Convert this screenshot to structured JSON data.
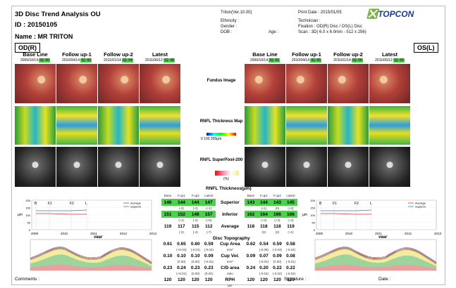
{
  "header": {
    "title": "3D Disc Trend Analysis OU",
    "id": "ID : 20150105",
    "name": "Name : MR   TRITON",
    "version": "Triton(Ver.10.00)",
    "ethnicity": "Ethnicity :",
    "gender": "Gender :",
    "dob": "DOB :",
    "age": "Age :",
    "print_date": "Print Date : 2015/01/05",
    "technician": "Technician :",
    "fixation": "Fixation : OD(R) Disc / OS(L) Disc",
    "scan": "Scan : 3D( 6.0 x 6.0mm - 512 x 256)",
    "logo": "TOPCON"
  },
  "od": {
    "label": "OD(R)",
    "cols": [
      {
        "h": "Base Line",
        "d": "2009/10/14",
        "iq": "IQ: 60"
      },
      {
        "h": "Follow up-1",
        "d": "2010/04/14",
        "iq": "IQ: 60"
      },
      {
        "h": "Follow up-2",
        "d": "2011/01/14",
        "iq": "IQ: 54"
      },
      {
        "h": "Latest",
        "d": "2011/06/12",
        "iq": "IQ: 38"
      }
    ]
  },
  "os": {
    "label": "OS(L)",
    "cols": [
      {
        "h": "Base Line",
        "d": "2009/10/14",
        "iq": "IQ: 65"
      },
      {
        "h": "Follow up-1",
        "d": "2010/04/14",
        "iq": "IQ: 65"
      },
      {
        "h": "Follow up-2",
        "d": "2011/01/14",
        "iq": "IQ: 56"
      },
      {
        "h": "Latest",
        "d": "2011/06/12",
        "iq": "IQ: 55"
      }
    ]
  },
  "center": {
    "fundus": "Fundus Image",
    "rnfl": "RNFL Thickness Map",
    "scale": "0   100   200µm",
    "sp": "RNFL SuperPixel-200",
    "sp_unit": "(%)",
    "thick_title": "RNFL Thickness(µm)",
    "disc_title": "Disc Topography"
  },
  "table": {
    "head": [
      "Base",
      "F.up1",
      "F.up2",
      "Latest",
      "",
      "Base",
      "F.up1",
      "F.up2",
      "Latest"
    ],
    "rows": [
      {
        "label": "Superior",
        "od": [
          "146",
          "144",
          "144",
          "147"
        ],
        "od_d": [
          "",
          "(-2)",
          "(-2)",
          "(+1)"
        ],
        "os": [
          "143",
          "144",
          "143",
          "145"
        ],
        "os_d": [
          "",
          "(+1)",
          "(0)",
          "(+2)"
        ],
        "green": true
      },
      {
        "label": "Inferior",
        "od": [
          "151",
          "152",
          "148",
          "157"
        ],
        "od_d": [
          "",
          "(+1)",
          "(-3)",
          "(+6)"
        ],
        "os": [
          "162",
          "164",
          "166",
          "166"
        ],
        "os_d": [
          "",
          "(+2)",
          "(+4)",
          "(+4)"
        ],
        "green": true
      },
      {
        "label": "Average",
        "od": [
          "119",
          "117",
          "115",
          "112"
        ],
        "od_d": [
          "",
          "(-2)",
          "(-4)",
          "(-7)"
        ],
        "os": [
          "118",
          "118",
          "118",
          "119"
        ],
        "os_d": [
          "",
          "(0)",
          "(0)",
          "(+1)"
        ],
        "green": false
      },
      {
        "label": "Cup Area",
        "unit": "mm²",
        "od": [
          "0.61",
          "0.65",
          "0.60",
          "0.59"
        ],
        "od_d": [
          "",
          "(+0.04)",
          "(-0.01)",
          "(-0.02)"
        ],
        "os": [
          "0.62",
          "0.54",
          "0.59",
          "0.58"
        ],
        "os_d": [
          "",
          "(-0.08)",
          "(-0.03)",
          "(-0.04)"
        ],
        "green": false
      },
      {
        "label": "Cup Vol.",
        "unit": "mm³",
        "od": [
          "0.10",
          "0.10",
          "0.10",
          "0.09"
        ],
        "od_d": [
          "",
          "(0.00)",
          "(0.00)",
          "(-0.01)"
        ],
        "os": [
          "0.09",
          "0.07",
          "0.09",
          "0.08"
        ],
        "os_d": [
          "",
          "(-0.02)",
          "(0.00)",
          "(-0.01)"
        ],
        "green": false
      },
      {
        "label": "C/D area",
        "unit": "ratio",
        "od": [
          "0.23",
          "0.24",
          "0.23",
          "0.23"
        ],
        "od_d": [
          "",
          "(+0.01)",
          "(0.00)",
          "(0.00)"
        ],
        "os": [
          "0.24",
          "0.20",
          "0.22",
          "0.22"
        ],
        "os_d": [
          "",
          "(-0.04)",
          "(-0.02)",
          "(-0.02)"
        ],
        "green": false
      },
      {
        "label": "RPH",
        "unit": "µm",
        "od": [
          "120",
          "120",
          "120",
          "120"
        ],
        "od_d": [
          "",
          "",
          "",
          ""
        ],
        "os": [
          "120",
          "120",
          "120",
          "120"
        ],
        "os_d": [
          "",
          "",
          "",
          ""
        ],
        "green": false
      }
    ]
  },
  "trend": {
    "xt": [
      "2009",
      "2010",
      "2011",
      "2012",
      "2013"
    ],
    "ylabel": "µm",
    "xlabel": "year",
    "yt": [
      "200",
      "150",
      "100",
      "50",
      "0"
    ],
    "marks": [
      "B",
      "F1",
      "F2",
      "L"
    ],
    "legend": [
      "Average",
      "Superior"
    ]
  },
  "footer": {
    "comments": "Comments :",
    "signature": "Signature :",
    "date": "Date :"
  }
}
